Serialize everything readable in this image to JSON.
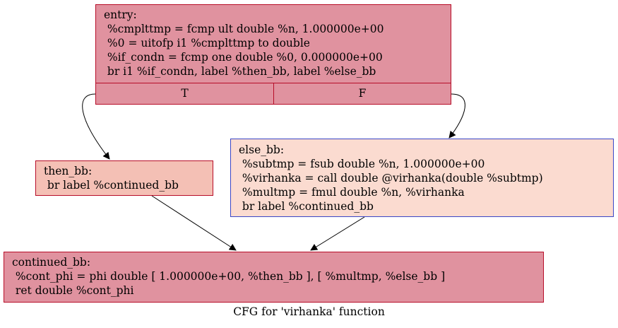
{
  "graph": {
    "caption": "CFG for 'virhanka' function",
    "nodes": {
      "entry": {
        "text": "entry:\n %cmplttmp = fcmp ult double %n, 1.000000e+00\n %0 = uitofp i1 %cmplttmp to double\n %if_condn = fcmp one double %0, 0.000000e+00\n br i1 %if_condn, label %then_bb, label %else_bb",
        "port_true": "T",
        "port_false": "F",
        "fill": "#e0929f",
        "border": "#b70d28"
      },
      "then_bb": {
        "text": "then_bb:\n br label %continued_bb",
        "fill": "#f4c0b5",
        "border": "#b70d28"
      },
      "else_bb": {
        "text": "else_bb:\n %subtmp = fsub double %n, 1.000000e+00\n %virhanka = call double @virhanka(double %subtmp)\n %multmp = fmul double %n, %virhanka\n br label %continued_bb",
        "fill": "#fbdbd0",
        "border": "#3a46c6"
      },
      "continued_bb": {
        "text": "continued_bb:\n %cont_phi = phi double [ 1.000000e+00, %then_bb ], [ %multmp, %else_bb ]\n ret double %cont_phi",
        "fill": "#e0929f",
        "border": "#b70d28"
      }
    },
    "edges": [
      {
        "from": "entry:T",
        "to": "then_bb"
      },
      {
        "from": "entry:F",
        "to": "else_bb"
      },
      {
        "from": "then_bb",
        "to": "continued_bb"
      },
      {
        "from": "else_bb",
        "to": "continued_bb"
      }
    ]
  }
}
